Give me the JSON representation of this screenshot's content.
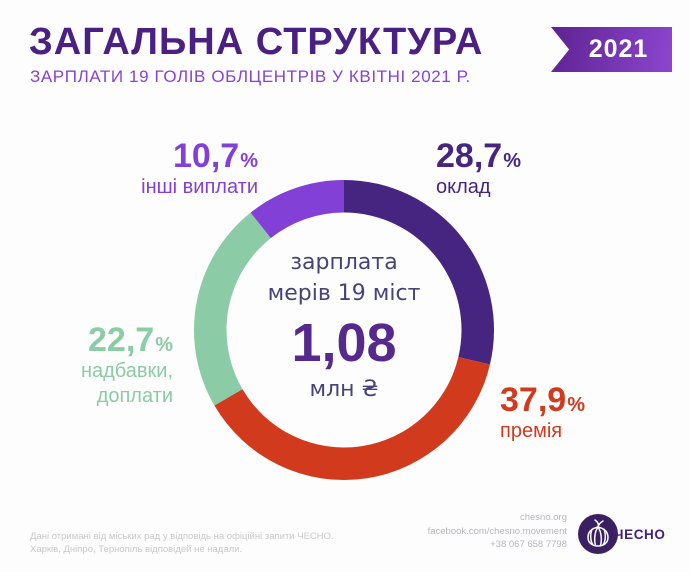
{
  "header": {
    "title": "ЗАГАЛЬНА СТРУКТУРА",
    "subtitle": "ЗАРПЛАТИ 19 ГОЛІВ ОБЛЦЕНТРІВ У КВІТНІ 2021 Р.",
    "year_badge": "2021"
  },
  "colors": {
    "title": "#4a2182",
    "subtitle": "#8444d4",
    "badge_gradient_from": "#5e2391",
    "badge_gradient_to": "#8c46cf",
    "center_text": "#474379",
    "center_value": "#552a8c",
    "logo_circle": "#3a2063",
    "logo_text": "#42217a"
  },
  "chart_data": {
    "type": "pie",
    "subtype": "donut",
    "title": "ЗАГАЛЬНА СТРУКТУРА",
    "subtitle": "ЗАРПЛАТИ 19 ГОЛІВ ОБЛЦЕНТРІВ У КВІТНІ 2021 Р.",
    "start_angle_deg": 0,
    "direction": "clockwise",
    "legend_position": "around-callouts",
    "center_label": {
      "line1": "зарплата",
      "line2": "мерів 19 міст",
      "value": "1,08",
      "unit": "млн ₴"
    },
    "slices": [
      {
        "label": "оклад",
        "value": 28.7,
        "display": "28,7",
        "color": "#462580"
      },
      {
        "label": "премія",
        "value": 37.9,
        "display": "37,9",
        "color": "#d23a1e"
      },
      {
        "label": "надбавки, доплати",
        "value": 22.7,
        "display": "22,7",
        "color": "#8bcba6"
      },
      {
        "label": "інші виплати",
        "value": 10.7,
        "display": "10,7",
        "color": "#8240d6"
      }
    ],
    "units": {
      "percent": "%"
    }
  },
  "footer": {
    "note_line1": "Дані отримані від міських рад у відповідь на офіційні запити ЧЕСНО.",
    "note_line2": "Харків, Дніпро, Тернопіль відповідей не надали.",
    "contacts": {
      "website": "chesno.org",
      "facebook": "facebook.com/chesno.movement",
      "phone": "+38 067 658 7798"
    },
    "logo_text": "ЧЕСНО"
  }
}
